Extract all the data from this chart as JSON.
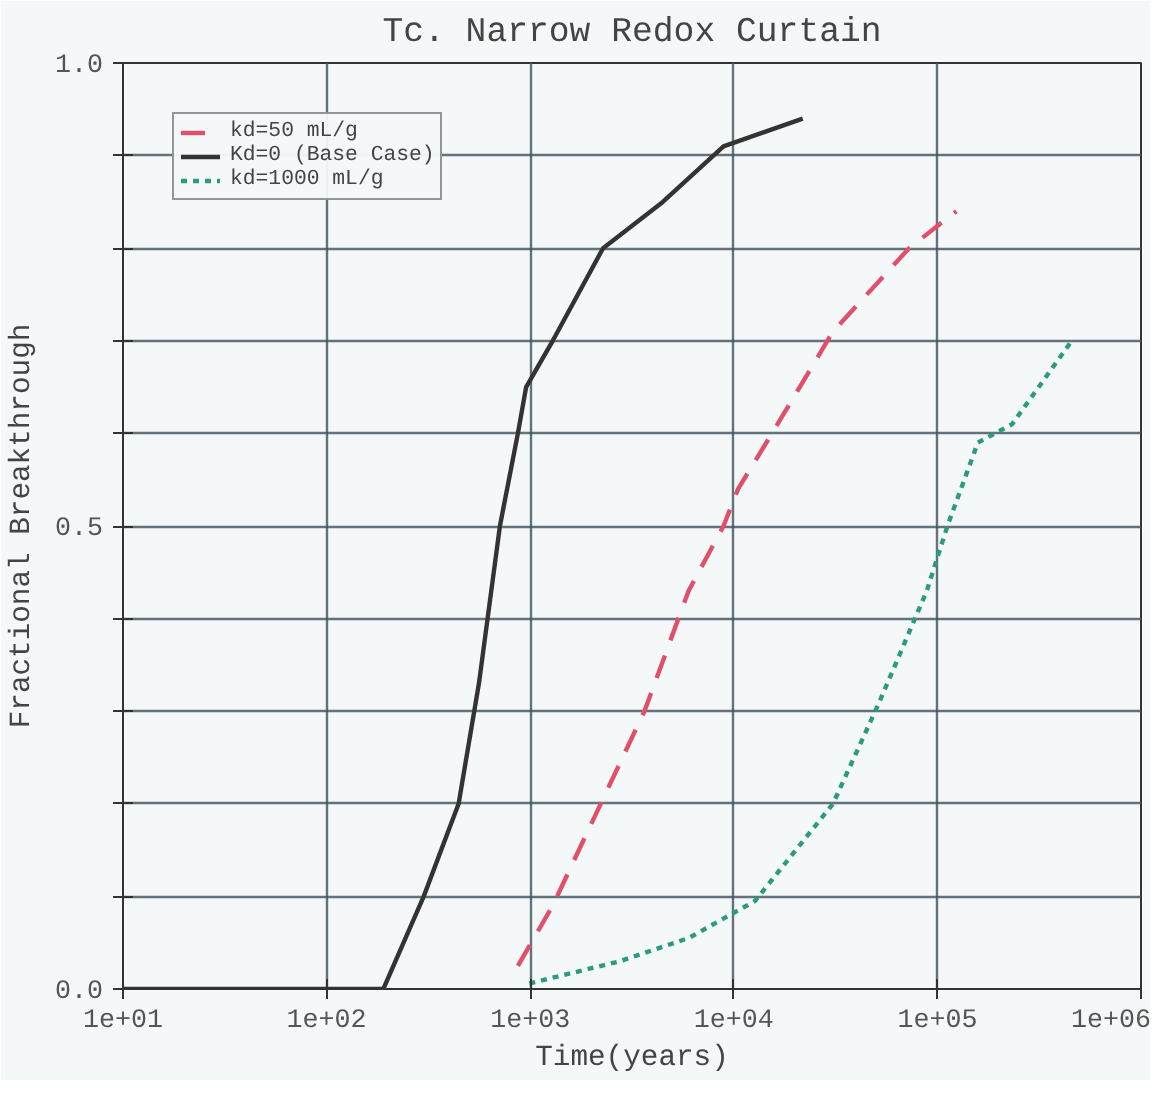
{
  "chart_data": {
    "type": "line",
    "title": "Tc. Narrow Redox Curtain",
    "xlabel": "Time(years)",
    "ylabel": "Fractional Breakthrough",
    "log": "x",
    "grid": true,
    "legend": "top left",
    "xlim": [
      10,
      1000000
    ],
    "ylim": [
      0,
      1.0
    ],
    "xticks": [
      {
        "value": 10,
        "label": "1e+01"
      },
      {
        "value": 100,
        "label": "1e+02"
      },
      {
        "value": 1000,
        "label": "1e+03"
      },
      {
        "value": 10000,
        "label": "1e+04"
      },
      {
        "value": 100000,
        "label": "1e+05"
      },
      {
        "value": 1000000,
        "label": "1e+06"
      }
    ],
    "yticks": [
      {
        "value": 0,
        "label": "0.0"
      },
      {
        "value": 0.1,
        "label": null
      },
      {
        "value": 0.2,
        "label": null
      },
      {
        "value": 0.3,
        "label": null
      },
      {
        "value": 0.4,
        "label": null
      },
      {
        "value": 0.5,
        "label": "0.5"
      },
      {
        "value": 0.6,
        "label": null
      },
      {
        "value": 0.7,
        "label": null
      },
      {
        "value": 0.8,
        "label": null
      },
      {
        "value": 0.9,
        "label": null
      },
      {
        "value": 1.0,
        "label": "1.0"
      }
    ],
    "series": [
      {
        "name": "kd=50 mL/g",
        "color": "#e0506a",
        "line_style": "dashed",
        "x": [
          870,
          1290,
          2450,
          3640,
          6000,
          8900,
          10500,
          15400,
          30700,
          72600,
          124000
        ],
        "values": [
          0.025,
          0.09,
          0.22,
          0.3,
          0.43,
          0.5,
          0.54,
          0.6,
          0.71,
          0.8,
          0.84
        ]
      },
      {
        "name": "Kd=0 (Base Case)",
        "color": "#333333",
        "line_style": "solid",
        "x": [
          10,
          190,
          300,
          445,
          560,
          710,
          870,
          955,
          1290,
          2280,
          4480,
          8900,
          21800
        ],
        "values": [
          0,
          0,
          0.1,
          0.2,
          0.33,
          0.5,
          0.6,
          0.65,
          0.7,
          0.8,
          0.85,
          0.91,
          0.94
        ]
      },
      {
        "name": "kd=1000 mL/g",
        "color": "#2a9a80",
        "line_style": "dotted",
        "x": [
          990,
          2760,
          6000,
          12700,
          30700,
          51900,
          88700,
          112000,
          158000,
          233000,
          457000
        ],
        "values": [
          0.006,
          0.03,
          0.055,
          0.095,
          0.2,
          0.31,
          0.43,
          0.5,
          0.59,
          0.61,
          0.7
        ]
      }
    ]
  }
}
